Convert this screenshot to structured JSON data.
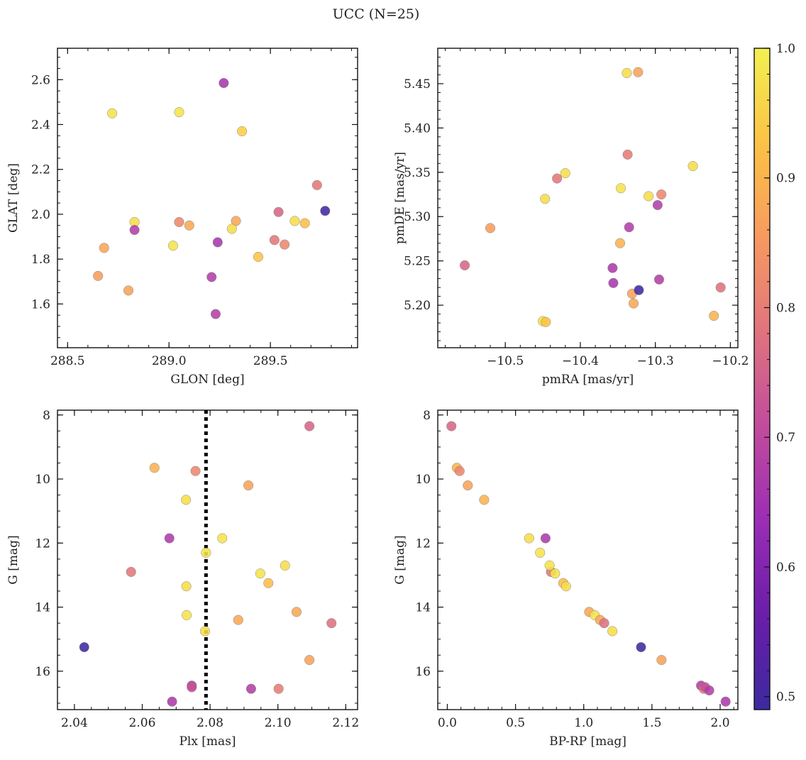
{
  "title": "UCC (N=25)",
  "colorbar": {
    "range": [
      0.49,
      1.0
    ],
    "ticks": [
      0.5,
      0.6,
      0.7,
      0.8,
      0.9,
      1.0
    ],
    "tick_labels": [
      "0.5",
      "0.6",
      "0.7",
      "0.8",
      "0.9",
      "1.0"
    ],
    "colormap": "plasma",
    "colors": [
      "#3c2aa0",
      "#6a1ca8",
      "#9a2eb5",
      "#c24b9d",
      "#e0737e",
      "#f79a60",
      "#fcc245",
      "#f2f050"
    ]
  },
  "chart_data": [
    {
      "type": "scatter",
      "xlabel": "GLON [deg]",
      "ylabel": "GLAT [deg]",
      "xlim": [
        288.45,
        289.93
      ],
      "ylim": [
        1.405,
        2.74
      ],
      "xticks": [
        288.5,
        289.0,
        289.5
      ],
      "xtick_labels": [
        "288.5",
        "289.0",
        "289.5"
      ],
      "yticks": [
        1.6,
        1.8,
        2.0,
        2.2,
        2.4,
        2.6
      ],
      "ytick_labels": [
        "1.6",
        "1.8",
        "2.0",
        "2.2",
        "2.4",
        "2.6"
      ],
      "x_minor": 0.1,
      "y_minor": 0.05,
      "y_inverted": false,
      "points": [
        {
          "x": 288.72,
          "y": 2.45,
          "c": 0.98
        },
        {
          "x": 289.05,
          "y": 2.455,
          "c": 0.98
        },
        {
          "x": 289.27,
          "y": 2.585,
          "c": 0.66
        },
        {
          "x": 289.36,
          "y": 2.37,
          "c": 0.95
        },
        {
          "x": 289.73,
          "y": 2.13,
          "c": 0.79
        },
        {
          "x": 289.77,
          "y": 2.015,
          "c": 0.5
        },
        {
          "x": 289.54,
          "y": 2.01,
          "c": 0.76
        },
        {
          "x": 289.62,
          "y": 1.97,
          "c": 0.97
        },
        {
          "x": 289.67,
          "y": 1.96,
          "c": 0.92
        },
        {
          "x": 289.52,
          "y": 1.885,
          "c": 0.79
        },
        {
          "x": 289.57,
          "y": 1.865,
          "c": 0.82
        },
        {
          "x": 289.44,
          "y": 1.81,
          "c": 0.93
        },
        {
          "x": 289.33,
          "y": 1.97,
          "c": 0.88
        },
        {
          "x": 289.31,
          "y": 1.935,
          "c": 0.97
        },
        {
          "x": 289.24,
          "y": 1.875,
          "c": 0.66
        },
        {
          "x": 289.21,
          "y": 1.72,
          "c": 0.68
        },
        {
          "x": 289.23,
          "y": 1.555,
          "c": 0.68
        },
        {
          "x": 289.1,
          "y": 1.95,
          "c": 0.88
        },
        {
          "x": 289.05,
          "y": 1.965,
          "c": 0.82
        },
        {
          "x": 289.02,
          "y": 1.86,
          "c": 0.98
        },
        {
          "x": 288.83,
          "y": 1.965,
          "c": 0.97
        },
        {
          "x": 288.83,
          "y": 1.93,
          "c": 0.68
        },
        {
          "x": 288.68,
          "y": 1.85,
          "c": 0.88
        },
        {
          "x": 288.65,
          "y": 1.725,
          "c": 0.86
        },
        {
          "x": 288.8,
          "y": 1.66,
          "c": 0.87
        }
      ]
    },
    {
      "type": "scatter",
      "xlabel": "pmRA [mas/yr]",
      "ylabel": "pmDE [mas/yr]",
      "xlim": [
        -10.59,
        -10.19
      ],
      "ylim": [
        5.152,
        5.49
      ],
      "xticks": [
        -10.5,
        -10.4,
        -10.3,
        -10.2
      ],
      "xtick_labels": [
        "−10.5",
        "−10.4",
        "−10.3",
        "−10.2"
      ],
      "yticks": [
        5.2,
        5.25,
        5.3,
        5.35,
        5.4,
        5.45
      ],
      "ytick_labels": [
        "5.20",
        "5.25",
        "5.30",
        "5.35",
        "5.40",
        "5.45"
      ],
      "x_minor": 0.02,
      "y_minor": 0.01,
      "y_inverted": false,
      "points": [
        {
          "x": -10.338,
          "y": 5.462,
          "c": 0.97
        },
        {
          "x": -10.323,
          "y": 5.463,
          "c": 0.87
        },
        {
          "x": -10.337,
          "y": 5.37,
          "c": 0.8
        },
        {
          "x": -10.25,
          "y": 5.357,
          "c": 0.97
        },
        {
          "x": -10.42,
          "y": 5.349,
          "c": 0.97
        },
        {
          "x": -10.431,
          "y": 5.343,
          "c": 0.79
        },
        {
          "x": -10.346,
          "y": 5.332,
          "c": 0.98
        },
        {
          "x": -10.309,
          "y": 5.323,
          "c": 0.97
        },
        {
          "x": -10.292,
          "y": 5.325,
          "c": 0.82
        },
        {
          "x": -10.447,
          "y": 5.32,
          "c": 0.97
        },
        {
          "x": -10.297,
          "y": 5.313,
          "c": 0.68
        },
        {
          "x": -10.335,
          "y": 5.288,
          "c": 0.68
        },
        {
          "x": -10.52,
          "y": 5.287,
          "c": 0.86
        },
        {
          "x": -10.347,
          "y": 5.27,
          "c": 0.9
        },
        {
          "x": -10.554,
          "y": 5.245,
          "c": 0.76
        },
        {
          "x": -10.357,
          "y": 5.242,
          "c": 0.67
        },
        {
          "x": -10.356,
          "y": 5.225,
          "c": 0.66
        },
        {
          "x": -10.295,
          "y": 5.229,
          "c": 0.68
        },
        {
          "x": -10.331,
          "y": 5.213,
          "c": 0.87
        },
        {
          "x": -10.322,
          "y": 5.217,
          "c": 0.5
        },
        {
          "x": -10.329,
          "y": 5.202,
          "c": 0.88
        },
        {
          "x": -10.213,
          "y": 5.22,
          "c": 0.78
        },
        {
          "x": -10.222,
          "y": 5.188,
          "c": 0.9
        },
        {
          "x": -10.45,
          "y": 5.182,
          "c": 0.98
        },
        {
          "x": -10.446,
          "y": 5.181,
          "c": 0.93
        }
      ]
    },
    {
      "type": "scatter",
      "xlabel": "Plx [mas]",
      "ylabel": "G [mag]",
      "xlim": [
        2.035,
        2.1235
      ],
      "ylim": [
        17.2,
        7.85
      ],
      "xticks": [
        2.04,
        2.06,
        2.08,
        2.1,
        2.12
      ],
      "xtick_labels": [
        "2.04",
        "2.06",
        "2.08",
        "2.10",
        "2.12"
      ],
      "yticks": [
        8,
        10,
        12,
        14,
        16
      ],
      "ytick_labels": [
        "8",
        "10",
        "12",
        "14",
        "16"
      ],
      "x_minor": 0.005,
      "y_minor": 0.5,
      "y_inverted": true,
      "vline_x": 2.0788,
      "points": [
        {
          "x": 2.1093,
          "y": 8.35,
          "c": 0.76
        },
        {
          "x": 2.0636,
          "y": 9.65,
          "c": 0.9
        },
        {
          "x": 2.0757,
          "y": 9.75,
          "c": 0.82
        },
        {
          "x": 2.0913,
          "y": 10.2,
          "c": 0.87
        },
        {
          "x": 2.0729,
          "y": 10.65,
          "c": 0.97
        },
        {
          "x": 2.068,
          "y": 11.85,
          "c": 0.67
        },
        {
          "x": 2.0836,
          "y": 11.85,
          "c": 0.98
        },
        {
          "x": 2.0788,
          "y": 12.3,
          "c": 0.98
        },
        {
          "x": 2.1021,
          "y": 12.7,
          "c": 0.97
        },
        {
          "x": 2.0567,
          "y": 12.9,
          "c": 0.79
        },
        {
          "x": 2.0948,
          "y": 12.95,
          "c": 0.98
        },
        {
          "x": 2.0972,
          "y": 13.25,
          "c": 0.92
        },
        {
          "x": 2.073,
          "y": 13.35,
          "c": 0.97
        },
        {
          "x": 2.0731,
          "y": 14.25,
          "c": 0.98
        },
        {
          "x": 2.1055,
          "y": 14.15,
          "c": 0.88
        },
        {
          "x": 2.0883,
          "y": 14.4,
          "c": 0.88
        },
        {
          "x": 2.1158,
          "y": 14.5,
          "c": 0.78
        },
        {
          "x": 2.0785,
          "y": 14.75,
          "c": 0.97
        },
        {
          "x": 2.0429,
          "y": 15.25,
          "c": 0.5
        },
        {
          "x": 2.1093,
          "y": 15.65,
          "c": 0.87
        },
        {
          "x": 2.0746,
          "y": 16.45,
          "c": 0.68
        },
        {
          "x": 2.0746,
          "y": 16.5,
          "c": 0.72
        },
        {
          "x": 2.0921,
          "y": 16.55,
          "c": 0.68
        },
        {
          "x": 2.1002,
          "y": 16.55,
          "c": 0.8
        },
        {
          "x": 2.0688,
          "y": 16.95,
          "c": 0.67
        }
      ]
    },
    {
      "type": "scatter",
      "xlabel": "BP-RP [mag]",
      "ylabel": "G [mag]",
      "xlim": [
        -0.07,
        2.13
      ],
      "ylim": [
        17.2,
        7.85
      ],
      "xticks": [
        0.0,
        0.5,
        1.0,
        1.5,
        2.0
      ],
      "xtick_labels": [
        "0.0",
        "0.5",
        "1.0",
        "1.5",
        "2.0"
      ],
      "yticks": [
        8,
        10,
        12,
        14,
        16
      ],
      "ytick_labels": [
        "8",
        "10",
        "12",
        "14",
        "16"
      ],
      "x_minor": 0.1,
      "y_minor": 0.5,
      "y_inverted": true,
      "points": [
        {
          "x": 0.03,
          "y": 8.35,
          "c": 0.76
        },
        {
          "x": 0.07,
          "y": 9.65,
          "c": 0.9
        },
        {
          "x": 0.09,
          "y": 9.75,
          "c": 0.82
        },
        {
          "x": 0.15,
          "y": 10.2,
          "c": 0.87
        },
        {
          "x": 0.27,
          "y": 10.65,
          "c": 0.9
        },
        {
          "x": 0.6,
          "y": 11.85,
          "c": 0.97
        },
        {
          "x": 0.72,
          "y": 11.85,
          "c": 0.67
        },
        {
          "x": 0.68,
          "y": 12.3,
          "c": 0.98
        },
        {
          "x": 0.76,
          "y": 12.9,
          "c": 0.79
        },
        {
          "x": 0.75,
          "y": 12.7,
          "c": 0.98
        },
        {
          "x": 0.79,
          "y": 12.95,
          "c": 0.98
        },
        {
          "x": 0.85,
          "y": 13.25,
          "c": 0.92
        },
        {
          "x": 0.87,
          "y": 13.35,
          "c": 0.97
        },
        {
          "x": 1.04,
          "y": 14.15,
          "c": 0.88
        },
        {
          "x": 1.08,
          "y": 14.25,
          "c": 0.98
        },
        {
          "x": 1.12,
          "y": 14.4,
          "c": 0.88
        },
        {
          "x": 1.15,
          "y": 14.5,
          "c": 0.78
        },
        {
          "x": 1.21,
          "y": 14.75,
          "c": 0.97
        },
        {
          "x": 1.42,
          "y": 15.25,
          "c": 0.5
        },
        {
          "x": 1.57,
          "y": 15.65,
          "c": 0.87
        },
        {
          "x": 1.86,
          "y": 16.45,
          "c": 0.68
        },
        {
          "x": 1.88,
          "y": 16.55,
          "c": 0.8
        },
        {
          "x": 1.89,
          "y": 16.5,
          "c": 0.72
        },
        {
          "x": 1.92,
          "y": 16.6,
          "c": 0.68
        },
        {
          "x": 2.04,
          "y": 16.95,
          "c": 0.67
        }
      ]
    }
  ]
}
